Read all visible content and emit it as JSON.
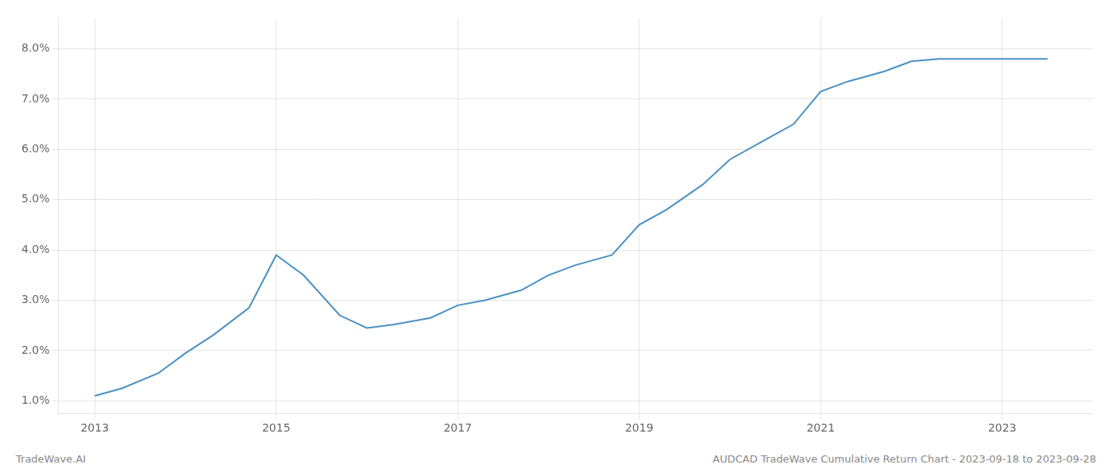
{
  "chart_data": {
    "type": "line",
    "x": [
      2013.0,
      2013.3,
      2013.7,
      2014.0,
      2014.3,
      2014.7,
      2015.0,
      2015.3,
      2015.7,
      2016.0,
      2016.3,
      2016.7,
      2017.0,
      2017.3,
      2017.7,
      2018.0,
      2018.3,
      2018.7,
      2019.0,
      2019.3,
      2019.7,
      2020.0,
      2020.3,
      2020.7,
      2021.0,
      2021.3,
      2021.7,
      2022.0,
      2022.3,
      2022.6,
      2022.8,
      2023.0,
      2023.5
    ],
    "values": [
      1.1,
      1.25,
      1.55,
      1.95,
      2.3,
      2.85,
      3.9,
      3.5,
      2.7,
      2.45,
      2.52,
      2.65,
      2.9,
      3.0,
      3.2,
      3.5,
      3.7,
      3.9,
      4.5,
      4.8,
      5.3,
      5.8,
      6.1,
      6.5,
      7.15,
      7.35,
      7.55,
      7.75,
      7.8,
      7.8,
      7.8,
      7.8,
      7.8
    ],
    "color": "#4a90c4",
    "xlim": [
      2012.6,
      2024.0
    ],
    "xticks": [
      2013,
      2015,
      2017,
      2019,
      2021,
      2023
    ],
    "ylim": [
      0.75,
      8.6
    ],
    "yticks": [
      {
        "value": 1.0,
        "label": "1.0%"
      },
      {
        "value": 2.0,
        "label": "2.0%"
      },
      {
        "value": 3.0,
        "label": "3.0%"
      },
      {
        "value": 4.0,
        "label": "4.0%"
      },
      {
        "value": 5.0,
        "label": "5.0%"
      },
      {
        "value": 6.0,
        "label": "6.0%"
      },
      {
        "value": 7.0,
        "label": "7.0%"
      },
      {
        "value": 8.0,
        "label": "8.0%"
      }
    ],
    "grid": true,
    "annotations": [
      {
        "text": "TradeWave.AI"
      },
      {
        "text": "AUDCAD TradeWave Cumulative Return Chart - 2023-09-18 to 2023-09-28"
      }
    ]
  }
}
